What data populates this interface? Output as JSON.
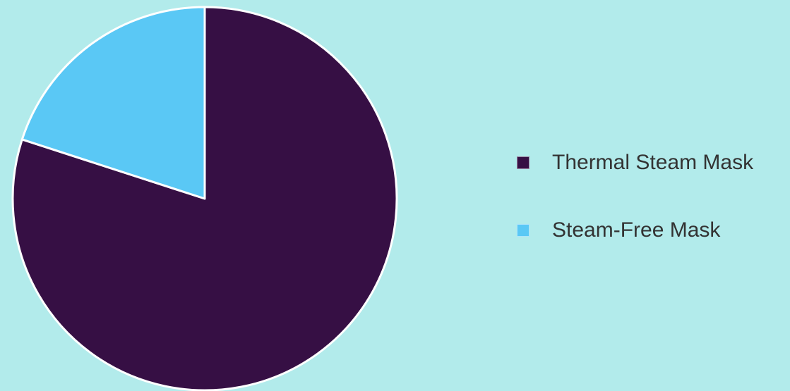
{
  "chart_data": {
    "type": "pie",
    "title": "",
    "start_angle_deg": 0,
    "direction": "clockwise",
    "legend_position": "right",
    "slices": [
      {
        "label": "Thermal Steam Mask",
        "value": 80,
        "color": "#360f44"
      },
      {
        "label": "Steam-Free Mask",
        "value": 20,
        "color": "#5ac8f5"
      }
    ]
  }
}
